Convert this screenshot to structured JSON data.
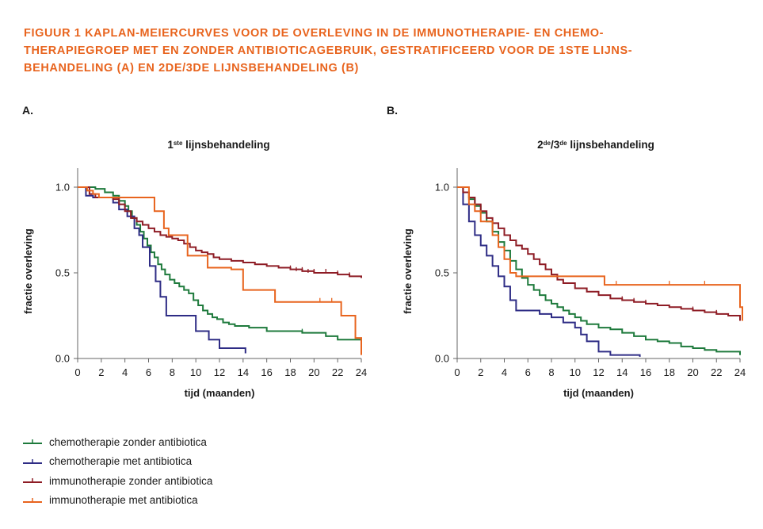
{
  "figure_title": {
    "line1": "FIGUUR 1  KAPLAN-MEIERCURVES VOOR DE OVERLEVING IN DE IMMUNOTHERAPIE- EN CHEMO-",
    "line2": "THERAPIEGROEP MET EN ZONDER ANTIBIOTICAGEBRUIK, GESTRATIFICEERD VOOR DE 1STE LIJNS-",
    "line3": "BEHANDELING (A) EN 2DE/3DE LIJNSBEHANDELING (B)"
  },
  "colors": {
    "title": "#e8641e",
    "chemo_no_ab": "#1e7a3c",
    "chemo_ab": "#2e2c85",
    "immuno_no_ab": "#8e1c25",
    "immuno_ab": "#e8641e",
    "axis": "#666666"
  },
  "legend": [
    {
      "label": "chemotherapie zonder antibiotica",
      "color": "#1e7a3c"
    },
    {
      "label": "chemotherapie met antibiotica",
      "color": "#2e2c85"
    },
    {
      "label": "immunotherapie zonder antibiotica",
      "color": "#8e1c25"
    },
    {
      "label": "immunotherapie met antibiotica",
      "color": "#e8641e"
    }
  ],
  "chart_data": [
    {
      "type": "line",
      "panel_label": "A.",
      "title_main": "1",
      "title_sup": "ste",
      "title_rest": " lijnsbehandeling",
      "xlabel": "tijd (maanden)",
      "ylabel": "fractie overleving",
      "xlim": [
        0,
        24
      ],
      "ylim": [
        0,
        1.0
      ],
      "xticks": [
        "0",
        "2",
        "4",
        "6",
        "8",
        "10",
        "12",
        "14",
        "16",
        "18",
        "20",
        "22",
        "24"
      ],
      "yticks": [
        "0.0",
        "0.5",
        "1.0"
      ],
      "series": [
        {
          "name": "chemotherapie zonder antibiotica",
          "color": "#1e7a3c",
          "x": [
            0,
            1.5,
            2.3,
            3,
            3.5,
            4,
            4.3,
            4.6,
            5,
            5.3,
            5.6,
            5.9,
            6.2,
            6.5,
            6.8,
            7.1,
            7.4,
            7.8,
            8.2,
            8.6,
            9,
            9.4,
            9.8,
            10.2,
            10.6,
            11,
            11.4,
            11.8,
            12.3,
            12.8,
            13.3,
            14.5,
            16,
            19,
            21,
            22,
            24
          ],
          "y": [
            1.0,
            0.99,
            0.97,
            0.95,
            0.92,
            0.89,
            0.86,
            0.82,
            0.78,
            0.74,
            0.7,
            0.66,
            0.62,
            0.59,
            0.55,
            0.52,
            0.49,
            0.46,
            0.44,
            0.42,
            0.4,
            0.38,
            0.34,
            0.31,
            0.28,
            0.26,
            0.24,
            0.23,
            0.21,
            0.2,
            0.19,
            0.18,
            0.16,
            0.15,
            0.13,
            0.11,
            0.1
          ],
          "censors": [
            [
              16,
              0.16
            ],
            [
              19,
              0.15
            ],
            [
              22,
              0.11
            ]
          ]
        },
        {
          "name": "chemotherapie met antibiotica",
          "color": "#2e2c85",
          "x": [
            0,
            0.7,
            1.3,
            2,
            3,
            3.5,
            4.2,
            4.8,
            5.2,
            5.5,
            6.1,
            6.6,
            7,
            7.5,
            10,
            11.1,
            11.6,
            12,
            14,
            14.2
          ],
          "y": [
            1.0,
            0.95,
            0.94,
            0.94,
            0.91,
            0.87,
            0.83,
            0.76,
            0.72,
            0.65,
            0.54,
            0.45,
            0.36,
            0.25,
            0.16,
            0.11,
            0.11,
            0.06,
            0.06,
            0.03
          ],
          "censors": []
        },
        {
          "name": "immunotherapie zonder antibiotica",
          "color": "#8e1c25",
          "x": [
            0,
            1,
            1.5,
            3,
            3.5,
            4,
            4.5,
            5,
            5.5,
            6,
            6.5,
            7,
            7.5,
            8,
            8.5,
            9,
            9.5,
            10,
            10.5,
            11,
            11.5,
            12,
            13,
            14,
            15,
            16,
            17,
            18,
            19,
            20,
            21,
            22,
            23,
            24
          ],
          "y": [
            1.0,
            0.96,
            0.94,
            0.93,
            0.9,
            0.86,
            0.82,
            0.8,
            0.78,
            0.76,
            0.74,
            0.72,
            0.71,
            0.7,
            0.69,
            0.67,
            0.65,
            0.63,
            0.62,
            0.61,
            0.59,
            0.58,
            0.57,
            0.56,
            0.55,
            0.54,
            0.53,
            0.52,
            0.51,
            0.5,
            0.5,
            0.49,
            0.48,
            0.47
          ],
          "censors": [
            [
              18,
              0.52
            ],
            [
              18.5,
              0.51
            ],
            [
              19,
              0.51
            ],
            [
              19.5,
              0.5
            ],
            [
              20,
              0.5
            ],
            [
              21,
              0.5
            ],
            [
              22,
              0.49
            ],
            [
              23,
              0.48
            ]
          ]
        },
        {
          "name": "immunotherapie met antibiotica",
          "color": "#e8641e",
          "x": [
            0,
            0.8,
            1.3,
            1.8,
            2.5,
            6.5,
            7.3,
            7.7,
            9.3,
            11,
            13,
            14,
            16.7,
            18,
            20.5,
            21.5,
            22.3,
            23.5,
            24
          ],
          "y": [
            1.0,
            0.98,
            0.96,
            0.94,
            0.94,
            0.86,
            0.76,
            0.72,
            0.6,
            0.53,
            0.52,
            0.4,
            0.33,
            0.33,
            0.33,
            0.33,
            0.25,
            0.12,
            0.02
          ],
          "censors": [
            [
              20.5,
              0.33
            ],
            [
              21.5,
              0.33
            ]
          ]
        }
      ]
    },
    {
      "type": "line",
      "panel_label": "B.",
      "title_main": "2",
      "title_sup": "de",
      "title_mid": "/3",
      "title_sup2": "de",
      "title_rest": " lijnsbehandeling",
      "xlabel": "tijd (maanden)",
      "ylabel": "fractie overleving",
      "xlim": [
        0,
        24
      ],
      "ylim": [
        0,
        1.0
      ],
      "xticks": [
        "0",
        "2",
        "4",
        "6",
        "8",
        "10",
        "12",
        "14",
        "16",
        "18",
        "20",
        "22",
        "24"
      ],
      "yticks": [
        "0.0",
        "0.5",
        "1.0"
      ],
      "series": [
        {
          "name": "chemotherapie zonder antibiotica",
          "color": "#1e7a3c",
          "x": [
            0,
            0.5,
            1,
            1.5,
            2,
            2.5,
            3,
            3.5,
            4,
            4.5,
            5,
            5.5,
            6,
            6.5,
            7,
            7.5,
            8,
            8.5,
            9,
            9.5,
            10,
            10.5,
            11,
            12,
            13,
            14,
            15,
            16,
            17,
            18,
            19,
            20,
            21,
            22,
            23,
            24
          ],
          "y": [
            1.0,
            0.97,
            0.93,
            0.89,
            0.85,
            0.8,
            0.74,
            0.68,
            0.63,
            0.57,
            0.52,
            0.47,
            0.43,
            0.4,
            0.37,
            0.34,
            0.32,
            0.3,
            0.28,
            0.26,
            0.24,
            0.22,
            0.2,
            0.18,
            0.17,
            0.15,
            0.13,
            0.11,
            0.1,
            0.09,
            0.07,
            0.06,
            0.05,
            0.04,
            0.04,
            0.02
          ],
          "censors": [
            [
              24,
              0.02
            ]
          ]
        },
        {
          "name": "chemotherapie met antibiotica",
          "color": "#2e2c85",
          "x": [
            0,
            0.5,
            1,
            1.5,
            2,
            2.5,
            3,
            3.5,
            4,
            4.5,
            5,
            6,
            7,
            8,
            9,
            10,
            10.5,
            11,
            12,
            13,
            15.5
          ],
          "y": [
            1.0,
            0.9,
            0.8,
            0.72,
            0.66,
            0.6,
            0.54,
            0.48,
            0.42,
            0.34,
            0.28,
            0.28,
            0.26,
            0.24,
            0.21,
            0.18,
            0.14,
            0.1,
            0.04,
            0.02,
            0.01
          ],
          "censors": []
        },
        {
          "name": "immunotherapie zonder antibiotica",
          "color": "#8e1c25",
          "x": [
            0,
            0.5,
            1,
            1.5,
            2,
            2.5,
            3,
            3.5,
            4,
            4.5,
            5,
            5.5,
            6,
            6.5,
            7,
            7.5,
            8,
            8.5,
            9,
            10,
            11,
            12,
            13,
            14,
            15,
            16,
            17,
            18,
            19,
            20,
            21,
            22,
            23,
            24
          ],
          "y": [
            1.0,
            0.97,
            0.94,
            0.9,
            0.86,
            0.82,
            0.79,
            0.76,
            0.72,
            0.69,
            0.66,
            0.64,
            0.61,
            0.58,
            0.55,
            0.52,
            0.49,
            0.46,
            0.44,
            0.41,
            0.39,
            0.37,
            0.35,
            0.34,
            0.33,
            0.32,
            0.31,
            0.3,
            0.29,
            0.28,
            0.27,
            0.26,
            0.25,
            0.22
          ],
          "censors": [
            [
              13,
              0.35
            ],
            [
              14,
              0.34
            ],
            [
              15,
              0.33
            ],
            [
              16,
              0.32
            ],
            [
              20,
              0.28
            ],
            [
              22,
              0.26
            ]
          ]
        },
        {
          "name": "immunotherapie met antibiotica",
          "color": "#e8641e",
          "x": [
            0,
            1,
            1.5,
            2,
            3,
            3.5,
            4,
            4.5,
            5,
            12.5,
            24,
            24.2
          ],
          "y": [
            1.0,
            0.9,
            0.86,
            0.8,
            0.72,
            0.65,
            0.58,
            0.5,
            0.48,
            0.43,
            0.3,
            0.22
          ],
          "censors": [
            [
              13.5,
              0.43
            ],
            [
              18,
              0.43
            ],
            [
              21,
              0.43
            ]
          ]
        }
      ]
    }
  ]
}
